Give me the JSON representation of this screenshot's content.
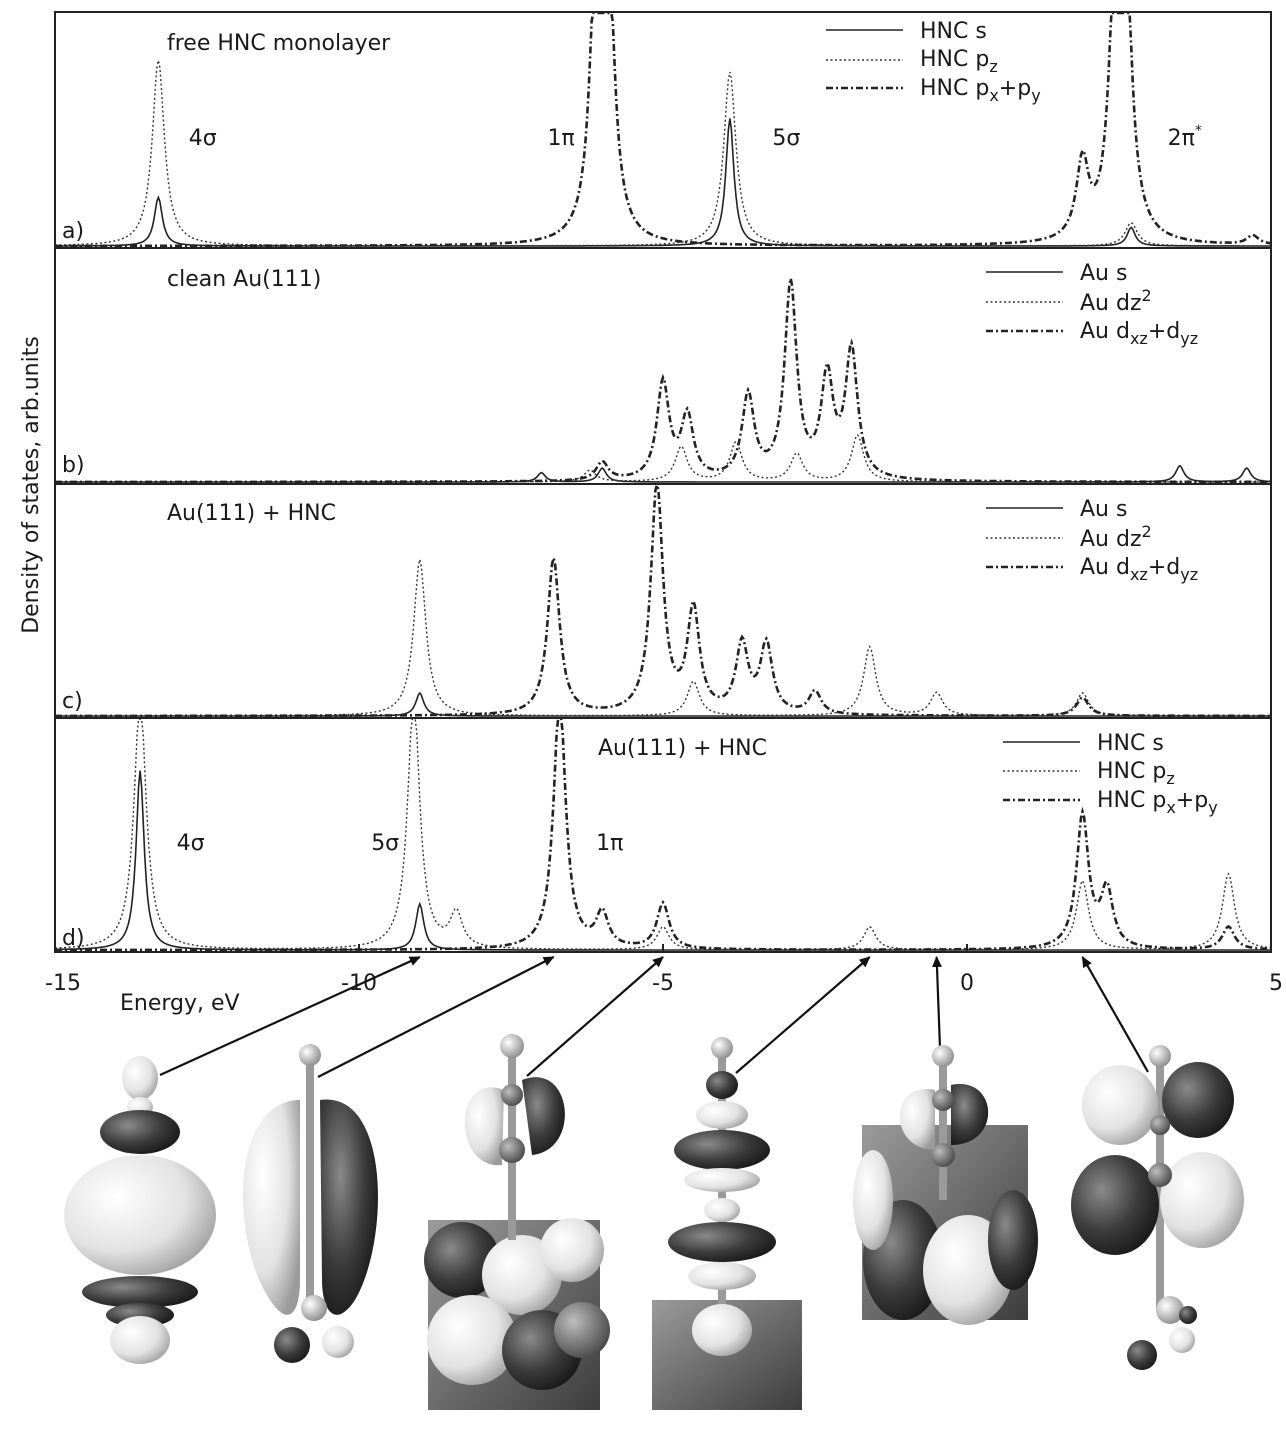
{
  "chart_data": [
    {
      "type": "line",
      "panel_label": "a)",
      "title": "free HNC monolayer",
      "xlim": [
        -15,
        5
      ],
      "series": [
        {
          "name": "HNC s",
          "style": "solid",
          "peaks": [
            [
              -13.3,
              0.21
            ],
            [
              -3.9,
              0.55
            ],
            [
              2.7,
              0.08
            ]
          ]
        },
        {
          "name": "HNC p_z",
          "style": "dotted",
          "peaks": [
            [
              -13.3,
              0.8
            ],
            [
              -3.9,
              0.75
            ],
            [
              2.7,
              0.1
            ]
          ]
        },
        {
          "name": "HNC p_x+p_y",
          "style": "dashdot",
          "peaks": [
            [
              -6.1,
              1.1
            ],
            [
              -5.9,
              1.1
            ],
            [
              1.9,
              0.33
            ],
            [
              2.45,
              1.1
            ],
            [
              2.6,
              1.1
            ],
            [
              4.7,
              0.04
            ]
          ]
        }
      ],
      "annotations": [
        {
          "text": "4σ",
          "x": -12.8
        },
        {
          "text": "1π",
          "x": -6.9
        },
        {
          "text": "5σ",
          "x": -3.2
        },
        {
          "text": "2π*",
          "x": 3.3
        }
      ]
    },
    {
      "type": "line",
      "panel_label": "b)",
      "title": "clean Au(111)",
      "xlim": [
        -15,
        5
      ],
      "series": [
        {
          "name": "Au s",
          "style": "solid",
          "peaks": [
            [
              -7.0,
              0.04
            ],
            [
              -6.0,
              0.06
            ],
            [
              3.5,
              0.07
            ],
            [
              4.6,
              0.06
            ]
          ]
        },
        {
          "name": "Au dz2",
          "style": "dotted",
          "peaks": [
            [
              -6.2,
              0.05
            ],
            [
              -4.7,
              0.15
            ],
            [
              -3.8,
              0.17
            ],
            [
              -2.8,
              0.12
            ],
            [
              -1.8,
              0.2
            ]
          ]
        },
        {
          "name": "Au d_xz+d_yz",
          "style": "dashdot",
          "peaks": [
            [
              -6.0,
              0.08
            ],
            [
              -5.0,
              0.42
            ],
            [
              -4.6,
              0.27
            ],
            [
              -3.6,
              0.36
            ],
            [
              -2.9,
              0.84
            ],
            [
              -2.3,
              0.43
            ],
            [
              -1.9,
              0.55
            ]
          ]
        }
      ]
    },
    {
      "type": "line",
      "panel_label": "c)",
      "title": "Au(111) + HNC",
      "xlim": [
        -15,
        5
      ],
      "series": [
        {
          "name": "Au s",
          "style": "solid",
          "peaks": [
            [
              -9.0,
              0.1
            ]
          ]
        },
        {
          "name": "Au dz2",
          "style": "dotted",
          "peaks": [
            [
              -9.0,
              0.68
            ],
            [
              -4.5,
              0.15
            ],
            [
              -1.6,
              0.3
            ],
            [
              -0.5,
              0.1
            ],
            [
              1.9,
              0.1
            ]
          ]
        },
        {
          "name": "Au d_xz+d_yz",
          "style": "dashdot",
          "peaks": [
            [
              -6.8,
              0.68
            ],
            [
              -5.1,
              1.0
            ],
            [
              -4.5,
              0.45
            ],
            [
              -3.7,
              0.3
            ],
            [
              -3.3,
              0.3
            ],
            [
              -2.5,
              0.1
            ],
            [
              1.9,
              0.08
            ]
          ]
        }
      ]
    },
    {
      "type": "line",
      "panel_label": "d)",
      "title": "Au(111) + HNC",
      "xlim": [
        -15,
        5
      ],
      "series": [
        {
          "name": "HNC s",
          "style": "solid",
          "peaks": [
            [
              -13.6,
              0.78
            ],
            [
              -9.0,
              0.2
            ]
          ]
        },
        {
          "name": "HNC p_z",
          "style": "dotted",
          "peaks": [
            [
              -13.6,
              1.1
            ],
            [
              -9.1,
              1.1
            ],
            [
              -8.4,
              0.15
            ],
            [
              -5.0,
              0.1
            ],
            [
              -1.6,
              0.1
            ],
            [
              1.9,
              0.3
            ],
            [
              4.3,
              0.33
            ]
          ]
        },
        {
          "name": "HNC p_x+p_y",
          "style": "dashdot",
          "peaks": [
            [
              -6.7,
              1.1
            ],
            [
              -6.0,
              0.15
            ],
            [
              -5.0,
              0.2
            ],
            [
              1.9,
              0.58
            ],
            [
              2.3,
              0.25
            ],
            [
              4.3,
              0.1
            ]
          ]
        }
      ],
      "annotations": [
        {
          "text": "4σ",
          "x": -13.0
        },
        {
          "text": "5σ",
          "x": -9.8
        },
        {
          "text": "1π",
          "x": -6.1
        }
      ]
    }
  ],
  "axes": {
    "x_label": "Energy, eV",
    "y_label": "Density of states, arb.units",
    "x_ticks": [
      "-15",
      "-10",
      "-5",
      "0",
      "5"
    ]
  },
  "legend_labels": {
    "hnc_s": "HNC s",
    "hnc_pz_main": "HNC p",
    "hnc_pz_sub": "z",
    "hnc_pxpy": [
      "HNC p",
      "x",
      "+p",
      "y"
    ],
    "au_s": "Au s",
    "au_dz2_main": "Au dz",
    "au_dz2_sup": "2",
    "au_dxz": [
      "Au d",
      "xz",
      "+d",
      "yz"
    ]
  },
  "colors": {
    "ink": "#1a1a1a",
    "orbital_dark": "#3a3a3a",
    "orbital_light": "#ececec"
  },
  "orbital_images": [
    {
      "name": "orbital-5sigma",
      "arrow_target_energy": -9.0
    },
    {
      "name": "orbital-1pi",
      "arrow_target_energy": -6.8
    },
    {
      "name": "orbital-mixed-minus5",
      "arrow_target_energy": -5.0
    },
    {
      "name": "orbital-minus1-6",
      "arrow_target_energy": -1.6
    },
    {
      "name": "orbital-minus0-5",
      "arrow_target_energy": -0.5
    },
    {
      "name": "orbital-2pi-star",
      "arrow_target_energy": 1.9
    }
  ]
}
